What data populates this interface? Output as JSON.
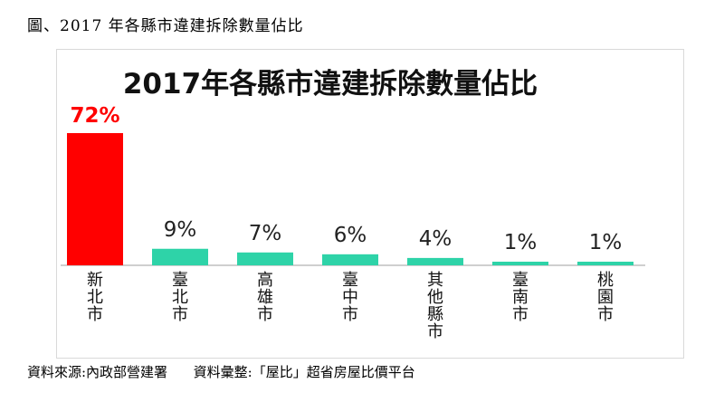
{
  "caption": "圖、2017 年各縣市違建拆除數量佔比",
  "source": "資料來源:內政部營建署      資料彙整:「屋比」超省房屋比價平台",
  "chart_data": {
    "type": "bar",
    "title": "2017年各縣市違建拆除數量佔比",
    "categories": [
      "新北市",
      "臺北市",
      "高雄市",
      "臺中市",
      "其他縣市",
      "臺南市",
      "桃園市"
    ],
    "values": [
      72,
      9,
      7,
      6,
      4,
      1,
      1
    ],
    "value_labels": [
      "72%",
      "9%",
      "7%",
      "6%",
      "4%",
      "1%",
      "1%"
    ],
    "ylim": [
      0,
      72
    ],
    "highlight_color": "#ff0000",
    "bar_color": "#2ed3a8",
    "grid": false,
    "legend": "none"
  }
}
